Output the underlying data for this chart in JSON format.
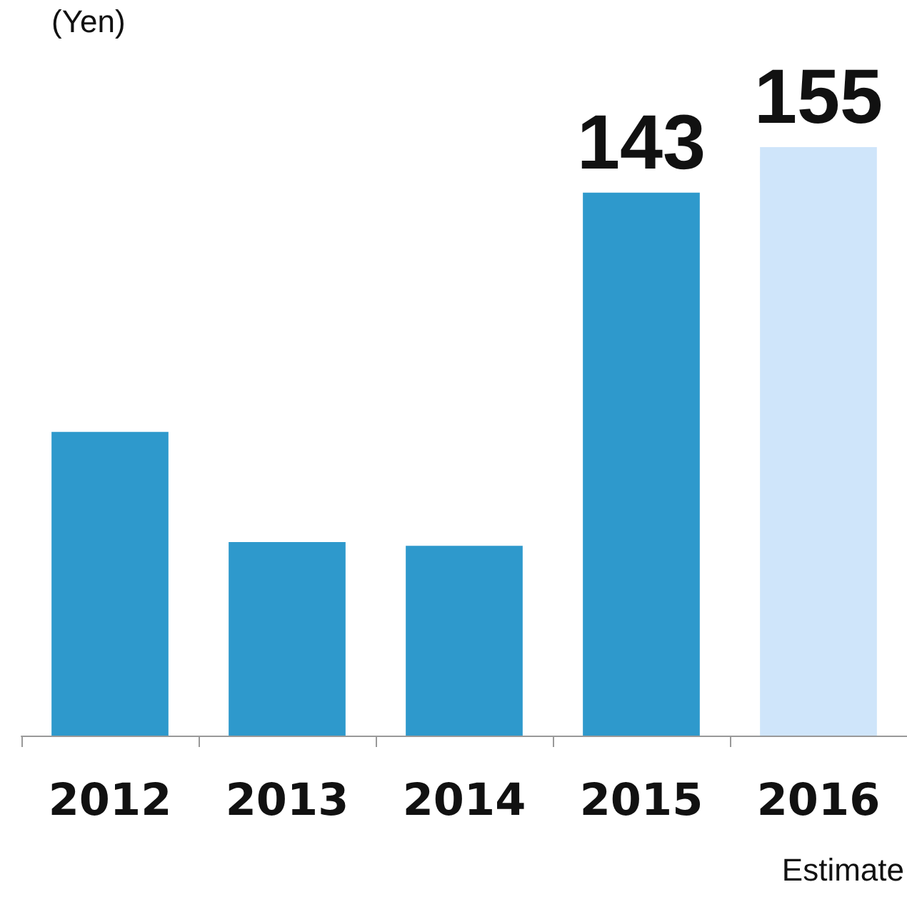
{
  "chart_data": {
    "type": "bar",
    "ylabel": "(Yen)",
    "categories": [
      "2012",
      "2013",
      "2014",
      "2015",
      "2016"
    ],
    "values": [
      80,
      51,
      50,
      143,
      155
    ],
    "colors": [
      "#2e99cc",
      "#2e99cc",
      "#2e99cc",
      "#2e99cc",
      "#cfe5fa"
    ],
    "value_labels": [
      null,
      null,
      null,
      "143",
      "155"
    ],
    "annotations": [
      "Estimate"
    ]
  }
}
